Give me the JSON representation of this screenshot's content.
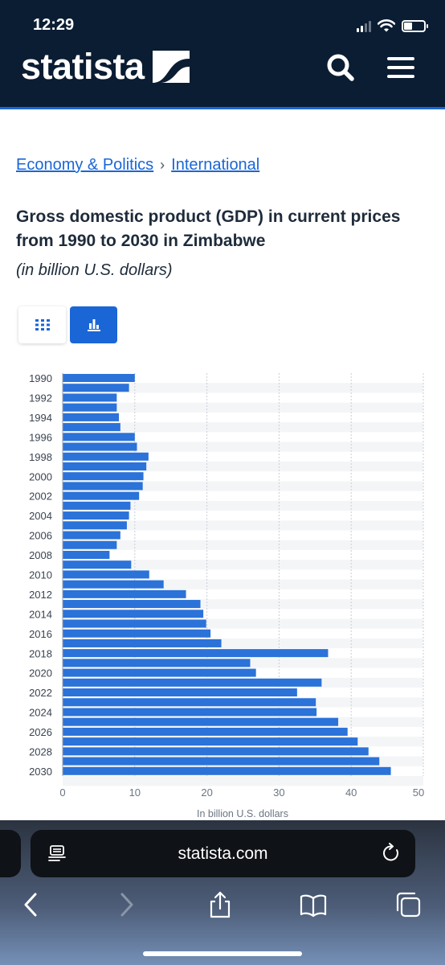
{
  "status": {
    "time": "12:29"
  },
  "header": {
    "logo": "statista",
    "icons": [
      "search-icon",
      "menu-icon"
    ]
  },
  "breadcrumb": {
    "items": [
      "Economy & Politics",
      "International"
    ],
    "separator": "›"
  },
  "title": "Gross domestic product (GDP) in current prices from 1990 to 2030 in Zimbabwe",
  "subtitle": "(in billion U.S. dollars)",
  "view_toggle": {
    "options": [
      "table-icon",
      "bar-chart-icon"
    ],
    "active": "bar-chart-icon"
  },
  "colors": {
    "accent": "#1a66d6",
    "header_bg": "#0b1d33",
    "bar": "#2b72d9"
  },
  "chart_data": {
    "type": "bar",
    "orientation": "horizontal",
    "title": "Gross domestic product (GDP) in current prices from 1990 to 2030 in Zimbabwe",
    "xlabel": "In billion U.S. dollars",
    "ylabel": "",
    "xlim": [
      0,
      50
    ],
    "xticks": [
      0,
      10,
      20,
      30,
      40,
      50
    ],
    "grid": true,
    "categories": [
      "1990",
      "1991",
      "1992",
      "1993",
      "1994",
      "1995",
      "1996",
      "1997",
      "1998",
      "1999",
      "2000",
      "2001",
      "2002",
      "2003",
      "2004",
      "2005",
      "2006",
      "2007",
      "2008",
      "2009",
      "2010",
      "2011",
      "2012",
      "2013",
      "2014",
      "2015",
      "2016",
      "2017",
      "2018",
      "2019",
      "2020",
      "2021",
      "2022",
      "2023",
      "2024",
      "2025",
      "2026",
      "2027",
      "2028",
      "2029",
      "2030"
    ],
    "y_tick_labels": [
      "1990",
      "1992",
      "1994",
      "1996",
      "1998",
      "2000",
      "2002",
      "2004",
      "2006",
      "2008",
      "2010",
      "2012",
      "2014",
      "2016",
      "2018",
      "2020",
      "2022",
      "2024",
      "2026",
      "2028",
      "2030"
    ],
    "values": [
      10.0,
      9.2,
      7.5,
      7.5,
      7.8,
      8.0,
      10.0,
      10.3,
      11.9,
      11.6,
      11.2,
      11.1,
      10.6,
      9.4,
      9.2,
      8.9,
      8.0,
      7.5,
      6.5,
      9.5,
      12.0,
      14.0,
      17.1,
      19.1,
      19.5,
      19.9,
      20.5,
      22.0,
      36.8,
      26.0,
      26.8,
      35.9,
      32.5,
      35.1,
      35.2,
      38.2,
      39.5,
      40.9,
      42.4,
      43.9,
      45.5
    ]
  },
  "browser": {
    "url": "statista.com"
  }
}
